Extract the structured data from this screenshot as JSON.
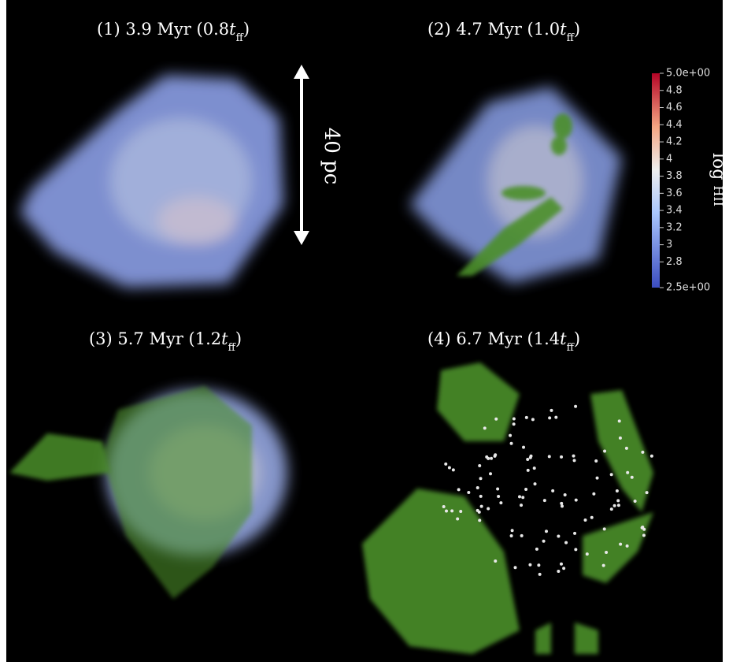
{
  "panels": [
    {
      "prefix": "(1) 3.9 Myr (0.8",
      "var": "t",
      "sub": "ff",
      "suffix": ")"
    },
    {
      "prefix": "(2) 4.7 Myr (1.0",
      "var": "t",
      "sub": "ff",
      "suffix": ")"
    },
    {
      "prefix": "(3) 5.7 Myr (1.2",
      "var": "t",
      "sub": "ff",
      "suffix": ")"
    },
    {
      "prefix": "(4) 6.7 Myr (1.4",
      "var": "t",
      "sub": "ff",
      "suffix": ")"
    }
  ],
  "scale_bar": "40 pc",
  "colorbar": {
    "label": "log",
    "label_sub": "HII",
    "range": [
      2.5,
      5
    ],
    "ticks": [
      {
        "value": 5,
        "label": "5.0e+00"
      },
      4.8,
      4.6,
      4.4,
      4.2,
      4,
      3.8,
      3.6,
      3.4,
      3.2,
      3,
      2.8,
      {
        "value": 2.5,
        "label": "2.5e+00"
      }
    ]
  }
}
